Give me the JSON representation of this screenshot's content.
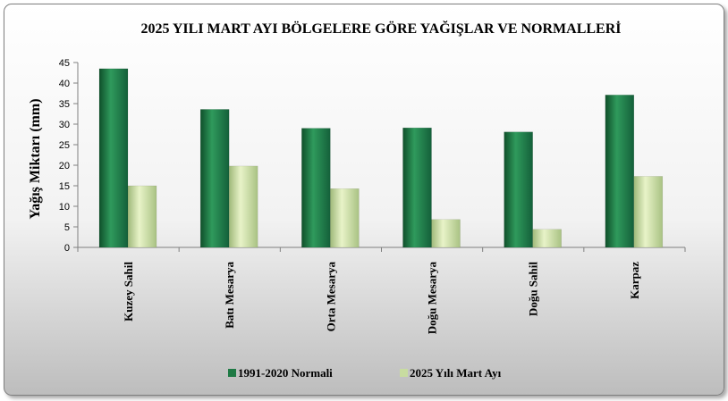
{
  "chart_data": {
    "type": "bar",
    "title": "2025 YILI MART AYI BÖLGELERE GÖRE YAĞIŞLAR VE NORMALLERİ",
    "ylabel": "Yağış Miktarı (mm)",
    "xlabel": "",
    "categories": [
      "Kuzey  Sahil",
      "Batı Mesarya",
      "Orta Mesarya",
      "Doğu Mesarya",
      "Doğu Sahil",
      "Karpaz"
    ],
    "series": [
      {
        "name": "1991-2020 Normali",
        "values": [
          43.5,
          33.6,
          29.0,
          29.1,
          28.1,
          37.1
        ],
        "color": "#1f7a45"
      },
      {
        "name": "2025 Yılı Mart Ayı",
        "values": [
          15.0,
          19.8,
          14.3,
          6.8,
          4.4,
          17.3
        ],
        "color": "#c8dca0"
      }
    ],
    "ylim": [
      0,
      45
    ],
    "yticks": [
      0,
      5,
      10,
      15,
      20,
      25,
      30,
      35,
      40,
      45
    ],
    "grid": false,
    "legend_position": "bottom"
  }
}
